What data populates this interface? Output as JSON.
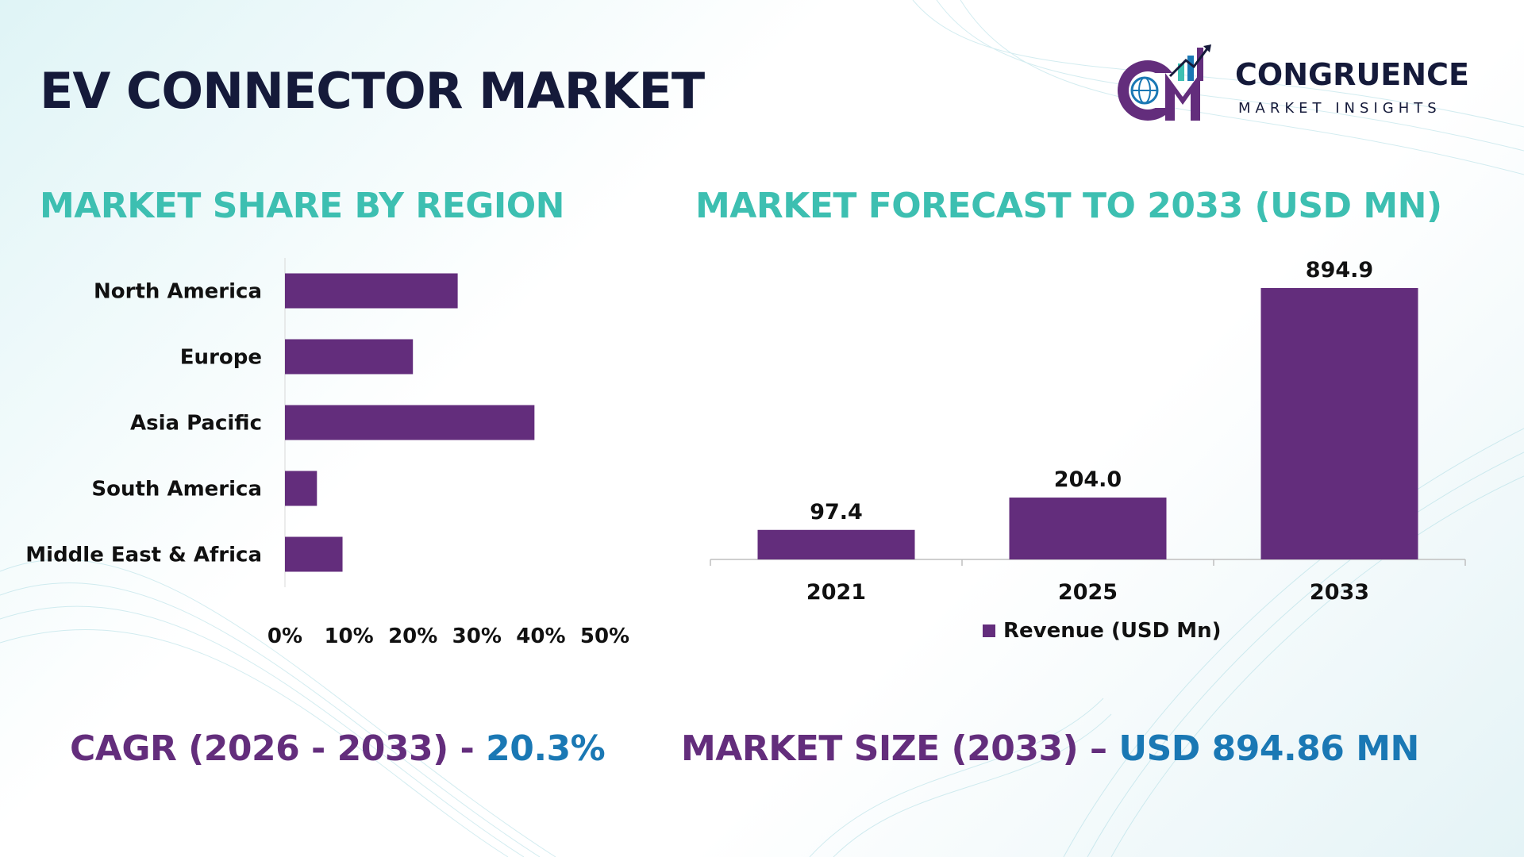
{
  "page": {
    "title": "EV CONNECTOR MARKET"
  },
  "logo": {
    "name": "CONGRUENCE",
    "tagline": "MARKET INSIGHTS",
    "colors": [
      "#632d7c",
      "#3dbfb1",
      "#1a78b4",
      "#151a3a"
    ]
  },
  "colors": {
    "bar": "#632d7c",
    "section_title": "#3dbfb1",
    "stat_label": "#632d7c",
    "stat_value": "#1a78b4",
    "title": "#151a3a"
  },
  "sections": {
    "share_title": "MARKET SHARE BY REGION",
    "forecast_title": "MARKET FORECAST TO 2033 (USD MN)"
  },
  "stats": {
    "cagr_label": "CAGR (2026 - 2033) - ",
    "cagr_value": "20.3%",
    "size_label": "MARKET SIZE (2033) – ",
    "size_value": "USD 894.86 MN"
  },
  "chart_data": [
    {
      "type": "bar",
      "orientation": "horizontal",
      "title": "MARKET SHARE BY REGION",
      "categories": [
        "North America",
        "Europe",
        "Asia Pacific",
        "South America",
        "Middle East & Africa"
      ],
      "values": [
        27,
        20,
        39,
        5,
        9
      ],
      "unit": "%",
      "xlim": [
        0,
        50
      ],
      "xticks": [
        "0%",
        "10%",
        "20%",
        "30%",
        "40%",
        "50%"
      ],
      "grid": false,
      "legend": false
    },
    {
      "type": "bar",
      "orientation": "vertical",
      "title": "MARKET FORECAST TO 2033 (USD MN)",
      "categories": [
        "2021",
        "2025",
        "2033"
      ],
      "values": [
        97.4,
        204.0,
        894.9
      ],
      "data_labels": [
        "97.4",
        "204.0",
        "894.9"
      ],
      "series": [
        {
          "name": "Revenue (USD Mn)",
          "values": [
            97.4,
            204.0,
            894.9
          ]
        }
      ],
      "ylim": [
        0,
        1000
      ],
      "grid": false,
      "legend": "bottom"
    }
  ]
}
